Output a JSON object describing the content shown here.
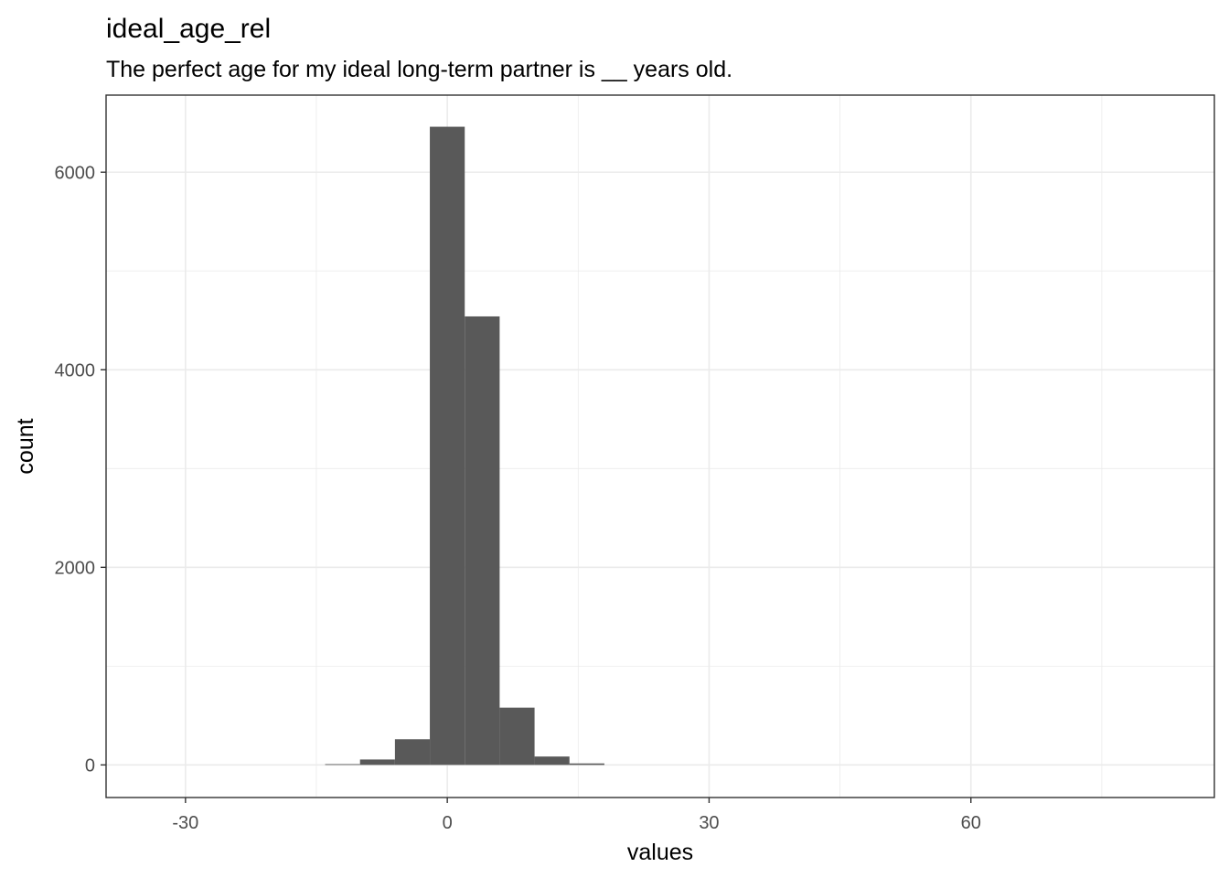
{
  "chart_data": {
    "type": "histogram",
    "title": "ideal_age_rel",
    "subtitle": "The perfect age for my ideal long-term partner is __ years old.",
    "xlabel": "values",
    "ylabel": "count",
    "xlim": [
      -39.1,
      87.9
    ],
    "ylim": [
      -330,
      6780
    ],
    "x_ticks": [
      -30,
      0,
      30,
      60
    ],
    "x_tick_labels": [
      "-30",
      "0",
      "30",
      "60"
    ],
    "y_ticks": [
      0,
      2000,
      4000,
      6000
    ],
    "y_tick_labels": [
      "0",
      "2000",
      "4000",
      "6000"
    ],
    "x_minor_ticks": [
      -15,
      15,
      45,
      75
    ],
    "y_minor_ticks": [
      1000,
      3000,
      5000
    ],
    "bins": [
      {
        "x0": -14,
        "x1": -10,
        "count": 8
      },
      {
        "x0": -10,
        "x1": -6,
        "count": 55
      },
      {
        "x0": -6,
        "x1": -2,
        "count": 260
      },
      {
        "x0": -2,
        "x1": 2,
        "count": 6460
      },
      {
        "x0": 2,
        "x1": 6,
        "count": 4540
      },
      {
        "x0": 6,
        "x1": 10,
        "count": 580
      },
      {
        "x0": 10,
        "x1": 14,
        "count": 85
      },
      {
        "x0": 14,
        "x1": 18,
        "count": 15
      }
    ],
    "grid": true,
    "bar_color": "#595959",
    "grid_color": "#ebebeb",
    "panel_border_color": "#333333"
  }
}
